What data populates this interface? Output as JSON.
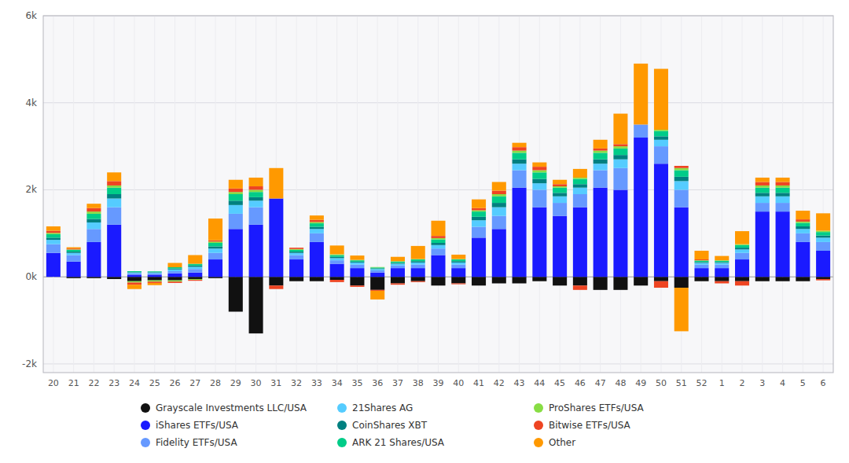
{
  "chart_data": {
    "type": "bar",
    "stacked": true,
    "grid": true,
    "legend": "bottom",
    "categories": [
      "20",
      "21",
      "22",
      "23",
      "24",
      "25",
      "26",
      "27",
      "28",
      "29",
      "30",
      "31",
      "32",
      "33",
      "34",
      "35",
      "36",
      "37",
      "38",
      "39",
      "40",
      "41",
      "42",
      "43",
      "44",
      "45",
      "46",
      "47",
      "48",
      "49",
      "50",
      "51",
      "52",
      "1",
      "2",
      "3",
      "4",
      "5",
      "6"
    ],
    "series": [
      {
        "name": "Grayscale Investments LLC/USA",
        "color": "#111111",
        "values": [
          0,
          -30,
          -30,
          -50,
          -100,
          -80,
          -80,
          -50,
          -30,
          -800,
          -1300,
          -200,
          -100,
          -100,
          -70,
          -200,
          -300,
          -150,
          -100,
          -200,
          -150,
          -200,
          -150,
          -150,
          -100,
          -200,
          -200,
          -300,
          -300,
          -200,
          -100,
          -250,
          -100,
          -100,
          -100,
          -100,
          -100,
          -100,
          -50
        ]
      },
      {
        "name": "iShares ETFs/USA",
        "color": "#1a1aff",
        "values": [
          550,
          350,
          800,
          1200,
          50,
          50,
          80,
          100,
          400,
          1100,
          1200,
          1800,
          400,
          800,
          300,
          200,
          100,
          200,
          200,
          500,
          200,
          900,
          1100,
          2050,
          1600,
          1400,
          1600,
          2050,
          2000,
          3200,
          2600,
          1600,
          200,
          200,
          400,
          1500,
          1500,
          800,
          600
        ]
      },
      {
        "name": "Fidelity ETFs/USA",
        "color": "#6699ff",
        "values": [
          200,
          150,
          300,
          400,
          30,
          30,
          50,
          80,
          150,
          350,
          400,
          0,
          100,
          200,
          80,
          80,
          50,
          60,
          80,
          150,
          80,
          250,
          300,
          400,
          400,
          300,
          300,
          400,
          500,
          300,
          400,
          400,
          80,
          80,
          150,
          200,
          200,
          200,
          200
        ]
      },
      {
        "name": "21Shares AG",
        "color": "#55ccff",
        "values": [
          100,
          50,
          150,
          200,
          20,
          20,
          40,
          50,
          100,
          200,
          150,
          0,
          50,
          100,
          50,
          50,
          30,
          40,
          50,
          80,
          50,
          150,
          200,
          150,
          150,
          150,
          150,
          150,
          200,
          0,
          150,
          200,
          40,
          40,
          80,
          150,
          150,
          100,
          100
        ]
      },
      {
        "name": "CoinShares XBT",
        "color": "#008080",
        "values": [
          50,
          30,
          80,
          100,
          10,
          10,
          20,
          30,
          50,
          100,
          80,
          0,
          30,
          50,
          30,
          20,
          15,
          20,
          30,
          50,
          30,
          80,
          100,
          100,
          100,
          80,
          80,
          100,
          100,
          0,
          80,
          100,
          20,
          20,
          40,
          80,
          80,
          60,
          50
        ]
      },
      {
        "name": "ARK 21 Shares/USA",
        "color": "#00cc88",
        "values": [
          80,
          40,
          120,
          150,
          20,
          15,
          30,
          40,
          80,
          150,
          120,
          0,
          40,
          80,
          40,
          30,
          20,
          30,
          40,
          80,
          40,
          120,
          150,
          150,
          150,
          120,
          120,
          150,
          150,
          0,
          120,
          150,
          30,
          30,
          60,
          120,
          120,
          80,
          80
        ]
      },
      {
        "name": "ProShares ETFs/USA",
        "color": "#88dd44",
        "values": [
          30,
          10,
          50,
          50,
          -30,
          -30,
          -30,
          -20,
          30,
          50,
          50,
          0,
          20,
          30,
          20,
          10,
          10,
          10,
          10,
          30,
          10,
          30,
          50,
          50,
          50,
          30,
          30,
          50,
          50,
          0,
          30,
          50,
          10,
          10,
          20,
          50,
          50,
          30,
          30
        ]
      },
      {
        "name": "Bitwise ETFs/USA",
        "color": "#ee4422",
        "values": [
          50,
          20,
          80,
          100,
          -50,
          -30,
          -30,
          -20,
          30,
          80,
          80,
          -80,
          30,
          50,
          -50,
          -30,
          -20,
          -30,
          -20,
          50,
          -20,
          50,
          80,
          80,
          80,
          50,
          -100,
          50,
          50,
          0,
          -150,
          50,
          20,
          -50,
          -100,
          80,
          80,
          50,
          -30
        ]
      },
      {
        "name": "Other",
        "color": "#ff9900",
        "values": [
          100,
          30,
          100,
          200,
          -100,
          -50,
          100,
          200,
          500,
          200,
          200,
          700,
          0,
          100,
          200,
          100,
          -200,
          100,
          300,
          350,
          100,
          200,
          200,
          100,
          100,
          100,
          200,
          200,
          700,
          1400,
          1400,
          -1000,
          200,
          100,
          300,
          100,
          100,
          200,
          400
        ]
      }
    ],
    "ylim": [
      -2200,
      6000
    ],
    "yticks": [
      {
        "value": -2000,
        "label": "-2k"
      },
      {
        "value": 0,
        "label": "0k"
      },
      {
        "value": 2000,
        "label": "2k"
      },
      {
        "value": 4000,
        "label": "4k"
      },
      {
        "value": 6000,
        "label": "6k"
      }
    ]
  }
}
